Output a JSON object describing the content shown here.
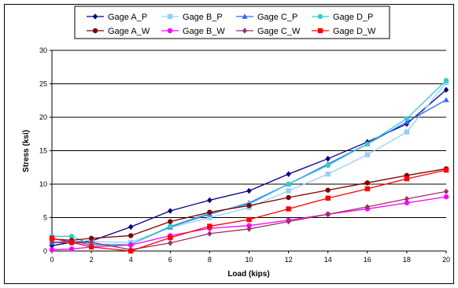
{
  "chart_data": {
    "type": "line",
    "title": "",
    "xlabel": "Load (kips)",
    "ylabel": "Stress (ksi)",
    "xlim": [
      0,
      20
    ],
    "ylim": [
      0,
      30
    ],
    "x_ticks": [
      "0",
      "2",
      "4",
      "6",
      "8",
      "10",
      "12",
      "14",
      "16",
      "18",
      "20"
    ],
    "y_ticks": [
      "0",
      "5",
      "10",
      "15",
      "20",
      "25",
      "30"
    ],
    "grid": "horizontal major gridlines",
    "legend_position": "top",
    "series": [
      {
        "name": "Gage A_P",
        "color": "#000080",
        "marker": "diamond",
        "points": [
          [
            0,
            0.8
          ],
          [
            1,
            1.3
          ],
          [
            2,
            1.5
          ],
          [
            4,
            3.6
          ],
          [
            6,
            6.0
          ],
          [
            8,
            7.6
          ],
          [
            10,
            9.0
          ],
          [
            12,
            11.5
          ],
          [
            14,
            13.8
          ],
          [
            16,
            16.3
          ],
          [
            18,
            19.0
          ],
          [
            20,
            24.1
          ]
        ]
      },
      {
        "name": "Gage B_P",
        "color": "#99CCFF",
        "marker": "square",
        "points": [
          [
            0,
            1.5
          ],
          [
            1,
            1.2
          ],
          [
            2,
            1.4
          ],
          [
            4,
            1.3
          ],
          [
            6,
            3.5
          ],
          [
            8,
            5.0
          ],
          [
            10,
            6.5
          ],
          [
            12,
            9.0
          ],
          [
            14,
            11.5
          ],
          [
            16,
            14.4
          ],
          [
            18,
            17.8
          ],
          [
            20,
            25.2
          ]
        ]
      },
      {
        "name": "Gage C_P",
        "color": "#3366FF",
        "marker": "triangle",
        "points": [
          [
            0,
            1.2
          ],
          [
            1,
            1.5
          ],
          [
            2,
            0.9
          ],
          [
            4,
            1.0
          ],
          [
            6,
            3.6
          ],
          [
            8,
            5.5
          ],
          [
            10,
            7.2
          ],
          [
            12,
            10.0
          ],
          [
            14,
            13.0
          ],
          [
            16,
            16.0
          ],
          [
            18,
            19.3
          ],
          [
            20,
            22.6
          ]
        ]
      },
      {
        "name": "Gage D_P",
        "color": "#33CCCC",
        "marker": "circle",
        "points": [
          [
            0,
            2.2
          ],
          [
            1,
            2.2
          ],
          [
            2,
            1.0
          ],
          [
            4,
            1.0
          ],
          [
            6,
            3.7
          ],
          [
            8,
            5.7
          ],
          [
            10,
            7.0
          ],
          [
            12,
            10.0
          ],
          [
            14,
            12.8
          ],
          [
            16,
            16.0
          ],
          [
            18,
            19.8
          ],
          [
            20,
            25.5
          ]
        ]
      },
      {
        "name": "Gage A_W",
        "color": "#800000",
        "marker": "circle",
        "points": [
          [
            0,
            1.8
          ],
          [
            1,
            1.6
          ],
          [
            2,
            1.9
          ],
          [
            4,
            2.3
          ],
          [
            6,
            4.4
          ],
          [
            8,
            5.8
          ],
          [
            10,
            6.8
          ],
          [
            12,
            8.0
          ],
          [
            14,
            9.1
          ],
          [
            16,
            10.2
          ],
          [
            18,
            11.3
          ],
          [
            20,
            12.3
          ]
        ]
      },
      {
        "name": "Gage B_W",
        "color": "#FF00FF",
        "marker": "circle",
        "points": [
          [
            0,
            0.2
          ],
          [
            1,
            0.3
          ],
          [
            2,
            0.6
          ],
          [
            4,
            0.9
          ],
          [
            6,
            2.3
          ],
          [
            8,
            3.4
          ],
          [
            10,
            3.8
          ],
          [
            12,
            4.6
          ],
          [
            14,
            5.5
          ],
          [
            16,
            6.3
          ],
          [
            18,
            7.2
          ],
          [
            20,
            8.1
          ]
        ]
      },
      {
        "name": "Gage C_W",
        "color": "#993366",
        "marker": "diamond",
        "points": [
          [
            0,
            1.3
          ],
          [
            1,
            1.2
          ],
          [
            2,
            1.3
          ],
          [
            4,
            0.2
          ],
          [
            6,
            1.2
          ],
          [
            8,
            2.6
          ],
          [
            10,
            3.3
          ],
          [
            12,
            4.4
          ],
          [
            14,
            5.5
          ],
          [
            16,
            6.6
          ],
          [
            18,
            7.8
          ],
          [
            20,
            8.9
          ]
        ]
      },
      {
        "name": "Gage D_W",
        "color": "#FF0000",
        "marker": "square",
        "points": [
          [
            0,
            1.9
          ],
          [
            1,
            1.3
          ],
          [
            2,
            0.6
          ],
          [
            4,
            0.0
          ],
          [
            6,
            2.0
          ],
          [
            8,
            3.7
          ],
          [
            10,
            4.7
          ],
          [
            12,
            6.3
          ],
          [
            14,
            7.9
          ],
          [
            16,
            9.3
          ],
          [
            18,
            10.8
          ],
          [
            20,
            12.1
          ]
        ]
      }
    ]
  }
}
